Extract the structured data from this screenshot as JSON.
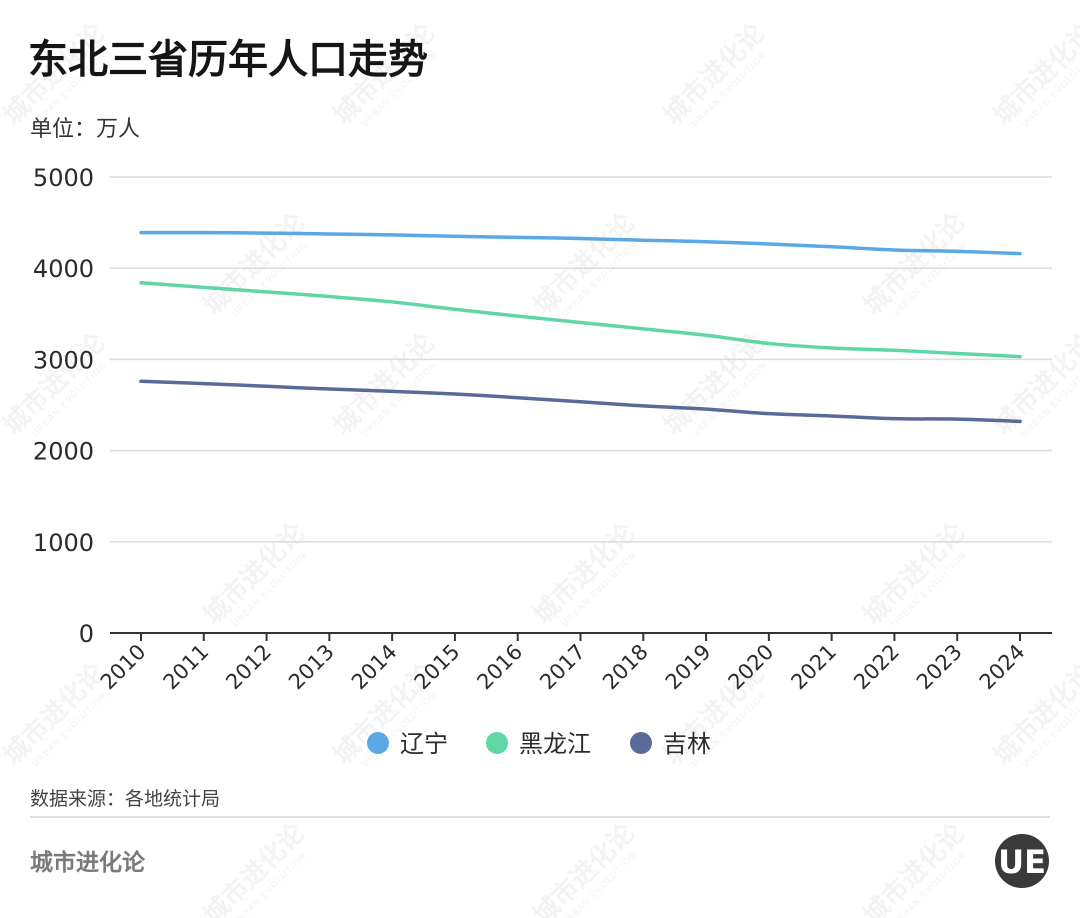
{
  "chart_data": {
    "type": "line",
    "title": "东北三省历年人口走势",
    "unit_label": "单位：万人",
    "x": [
      "2010",
      "2011",
      "2012",
      "2013",
      "2014",
      "2015",
      "2016",
      "2017",
      "2018",
      "2019",
      "2020",
      "2021",
      "2022",
      "2023",
      "2024"
    ],
    "yticks": [
      "0",
      "1000",
      "2000",
      "3000",
      "4000",
      "5000"
    ],
    "ylim": [
      0,
      5000
    ],
    "grid": true,
    "legend_position": "bottom-center",
    "series": [
      {
        "name": "辽宁",
        "color": "#5aa9e6",
        "values": [
          4390,
          4390,
          4385,
          4375,
          4365,
          4350,
          4338,
          4325,
          4307,
          4290,
          4265,
          4235,
          4200,
          4185,
          4160
        ]
      },
      {
        "name": "黑龙江",
        "color": "#5fd6a3",
        "values": [
          3840,
          3790,
          3740,
          3690,
          3630,
          3550,
          3475,
          3405,
          3335,
          3265,
          3175,
          3125,
          3100,
          3065,
          3030
        ]
      },
      {
        "name": "吉林",
        "color": "#5a6b99",
        "values": [
          2760,
          2735,
          2705,
          2675,
          2650,
          2620,
          2580,
          2535,
          2490,
          2455,
          2405,
          2380,
          2350,
          2345,
          2320
        ]
      }
    ]
  },
  "footer": {
    "source": "数据来源：各地统计局",
    "brand": "城市进化论",
    "logo_text": "UE"
  },
  "watermark": {
    "text": "城市进化论",
    "sub": "URBAN EVOLUTION"
  }
}
